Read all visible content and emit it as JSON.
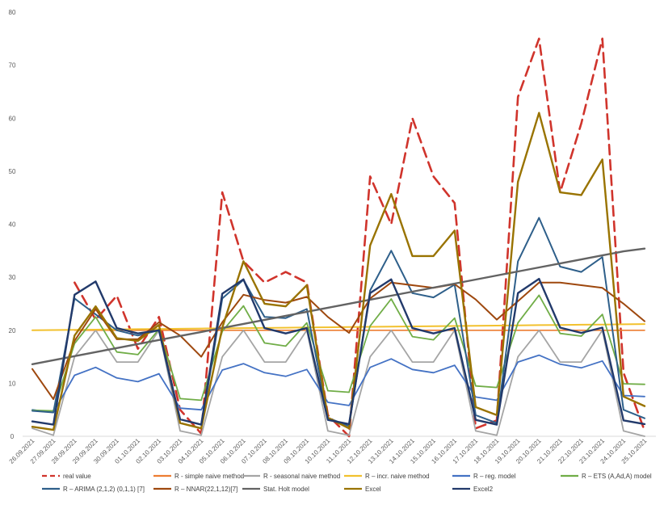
{
  "chart_data": {
    "type": "line",
    "title": "",
    "xlabel": "",
    "ylabel": "",
    "ylim": [
      0,
      80
    ],
    "yticks": [
      0,
      10,
      20,
      30,
      40,
      50,
      60,
      70,
      80
    ],
    "grid": false,
    "legend_position": "bottom",
    "categories": [
      "26.09.2021",
      "27.09.2021",
      "28.09.2021",
      "29.09.2021",
      "30.09.2021",
      "01.10.2021",
      "02.10.2021",
      "03.10.2021",
      "04.10.2021",
      "05.10.2021",
      "06.10.2021",
      "07.10.2021",
      "08.10.2021",
      "09.10.2021",
      "10.10.2021",
      "11.10.2021",
      "12.10.2021",
      "13.10.2021",
      "14.10.2021",
      "15.10.2021",
      "16.10.2021",
      "17.10.2021",
      "18.10.2021",
      "19.10.2021",
      "20.10.2021",
      "21.10.2021",
      "22.10.2021",
      "23.10.2021",
      "24.10.2021",
      "25.10.2021"
    ],
    "series": [
      {
        "name": "real value",
        "color": "#d0342c",
        "dash": true,
        "width": 2.6,
        "values": [
          null,
          null,
          29,
          22,
          26.5,
          16.5,
          22.5,
          5,
          0.5,
          46,
          33,
          29,
          31,
          29,
          4,
          0,
          49,
          40,
          60,
          49,
          44,
          1.5,
          3,
          64,
          75,
          46,
          59,
          75,
          12,
          1
        ]
      },
      {
        "name": "R - simple naive method",
        "color": "#ed7d31",
        "width": 1.6,
        "values": [
          null,
          null,
          20,
          20,
          20,
          20,
          20,
          20,
          20,
          20,
          20,
          20,
          20,
          20,
          20,
          20,
          20,
          20,
          20,
          20,
          20,
          20,
          20,
          20,
          20,
          20,
          20,
          20,
          20,
          20
        ]
      },
      {
        "name": "R - seasonal naive method",
        "color": "#a5a5a5",
        "width": 1.8,
        "values": [
          1.5,
          0.2,
          15,
          20,
          14,
          14,
          20,
          1,
          0.2,
          15,
          20,
          14,
          14,
          20,
          1,
          0.2,
          15,
          20,
          14,
          14,
          20,
          1,
          0.2,
          15,
          20,
          14,
          14,
          20,
          1,
          0
        ]
      },
      {
        "name": "R – incr. naive method",
        "color": "#f2c12e",
        "width": 2,
        "values": [
          20,
          20.04,
          20.08,
          20.12,
          20.16,
          20.2,
          20.24,
          20.28,
          20.32,
          20.36,
          20.4,
          20.44,
          20.48,
          20.52,
          20.56,
          20.6,
          20.64,
          20.68,
          20.72,
          20.76,
          20.8,
          20.84,
          20.88,
          20.92,
          20.96,
          21,
          21.04,
          21.08,
          21.12,
          21.16
        ]
      },
      {
        "name": "R – reg. model",
        "color": "#4472c4",
        "width": 1.8,
        "values": [
          5,
          4.5,
          11.5,
          13,
          11,
          10.3,
          11.8,
          5.3,
          5,
          12.5,
          13.7,
          12,
          11.3,
          12.6,
          6.4,
          5.8,
          13,
          14.6,
          12.6,
          12,
          13.4,
          7.4,
          6.8,
          14,
          15.3,
          13.6,
          12.9,
          14.2,
          7.7,
          7.5
        ]
      },
      {
        "name": "R – ETS (A,Ad,A) model",
        "color": "#70ad47",
        "width": 1.8,
        "values": [
          4.9,
          4.8,
          17.5,
          22.5,
          15.9,
          15.4,
          20.2,
          7.1,
          6.8,
          19.8,
          24.6,
          17.6,
          17,
          21.4,
          8.6,
          8.3,
          20.8,
          25.9,
          18.8,
          18.2,
          22.3,
          9.5,
          9.2,
          21.4,
          26.6,
          19.4,
          18.9,
          23,
          9.9,
          9.8
        ]
      },
      {
        "name": "R – ARIMA (2,1,2) (0,1,1) [7]",
        "color": "#2e5f8a",
        "width": 2,
        "values": [
          4.8,
          4.5,
          26,
          23,
          20,
          19,
          20,
          2.5,
          1.5,
          26,
          29.5,
          22.5,
          22.3,
          24,
          3.5,
          1.9,
          27.5,
          35,
          27,
          26.2,
          28.6,
          4,
          2.5,
          33,
          41.2,
          32,
          31,
          33.8,
          5,
          3.4
        ]
      },
      {
        "name": "R – NNAR(22,1,12)[7]",
        "color": "#9e480e",
        "width": 2,
        "values": [
          12.7,
          7,
          18,
          24,
          18.3,
          18.3,
          21.5,
          19,
          15,
          21.5,
          26.7,
          25.7,
          25.2,
          26.3,
          22.5,
          19.5,
          26,
          29,
          28.5,
          28,
          28.7,
          25.8,
          22,
          25.5,
          29,
          29,
          28.5,
          28,
          25,
          21.7
        ]
      },
      {
        "name": "Stat. Holt model",
        "color": "#636363",
        "width": 2.4,
        "values": [
          13.6,
          14.36,
          15.12,
          15.88,
          16.64,
          17.4,
          18.16,
          18.92,
          19.68,
          20.44,
          21.2,
          21.96,
          22.72,
          23.48,
          24.24,
          25,
          25.76,
          26.52,
          27.28,
          28.04,
          28.8,
          29.56,
          30.32,
          31.08,
          31.84,
          32.6,
          33.36,
          34.12,
          34.88,
          35.4
        ]
      },
      {
        "name": "Excel",
        "color": "#997300",
        "width": 2.4,
        "values": [
          1.8,
          1.2,
          19,
          24.5,
          18.5,
          18,
          21,
          2.5,
          1.5,
          20.5,
          33,
          25,
          24.5,
          28.5,
          3.5,
          1.5,
          36,
          45.7,
          34,
          34,
          38.8,
          5.5,
          4,
          48,
          61,
          46,
          45.5,
          52.2,
          7.5,
          5.7
        ]
      },
      {
        "name": "Excel2",
        "color": "#223a6b",
        "width": 2.4,
        "values": [
          2.8,
          2.2,
          26.7,
          29.2,
          20.4,
          19.4,
          20,
          3.2,
          2.2,
          26.9,
          29.6,
          20.4,
          19.4,
          20.4,
          3.1,
          2.3,
          27,
          29.6,
          20.4,
          19.4,
          20.4,
          3.1,
          2.2,
          27,
          29.7,
          20.5,
          19.5,
          20.5,
          3,
          2.3
        ]
      }
    ]
  }
}
